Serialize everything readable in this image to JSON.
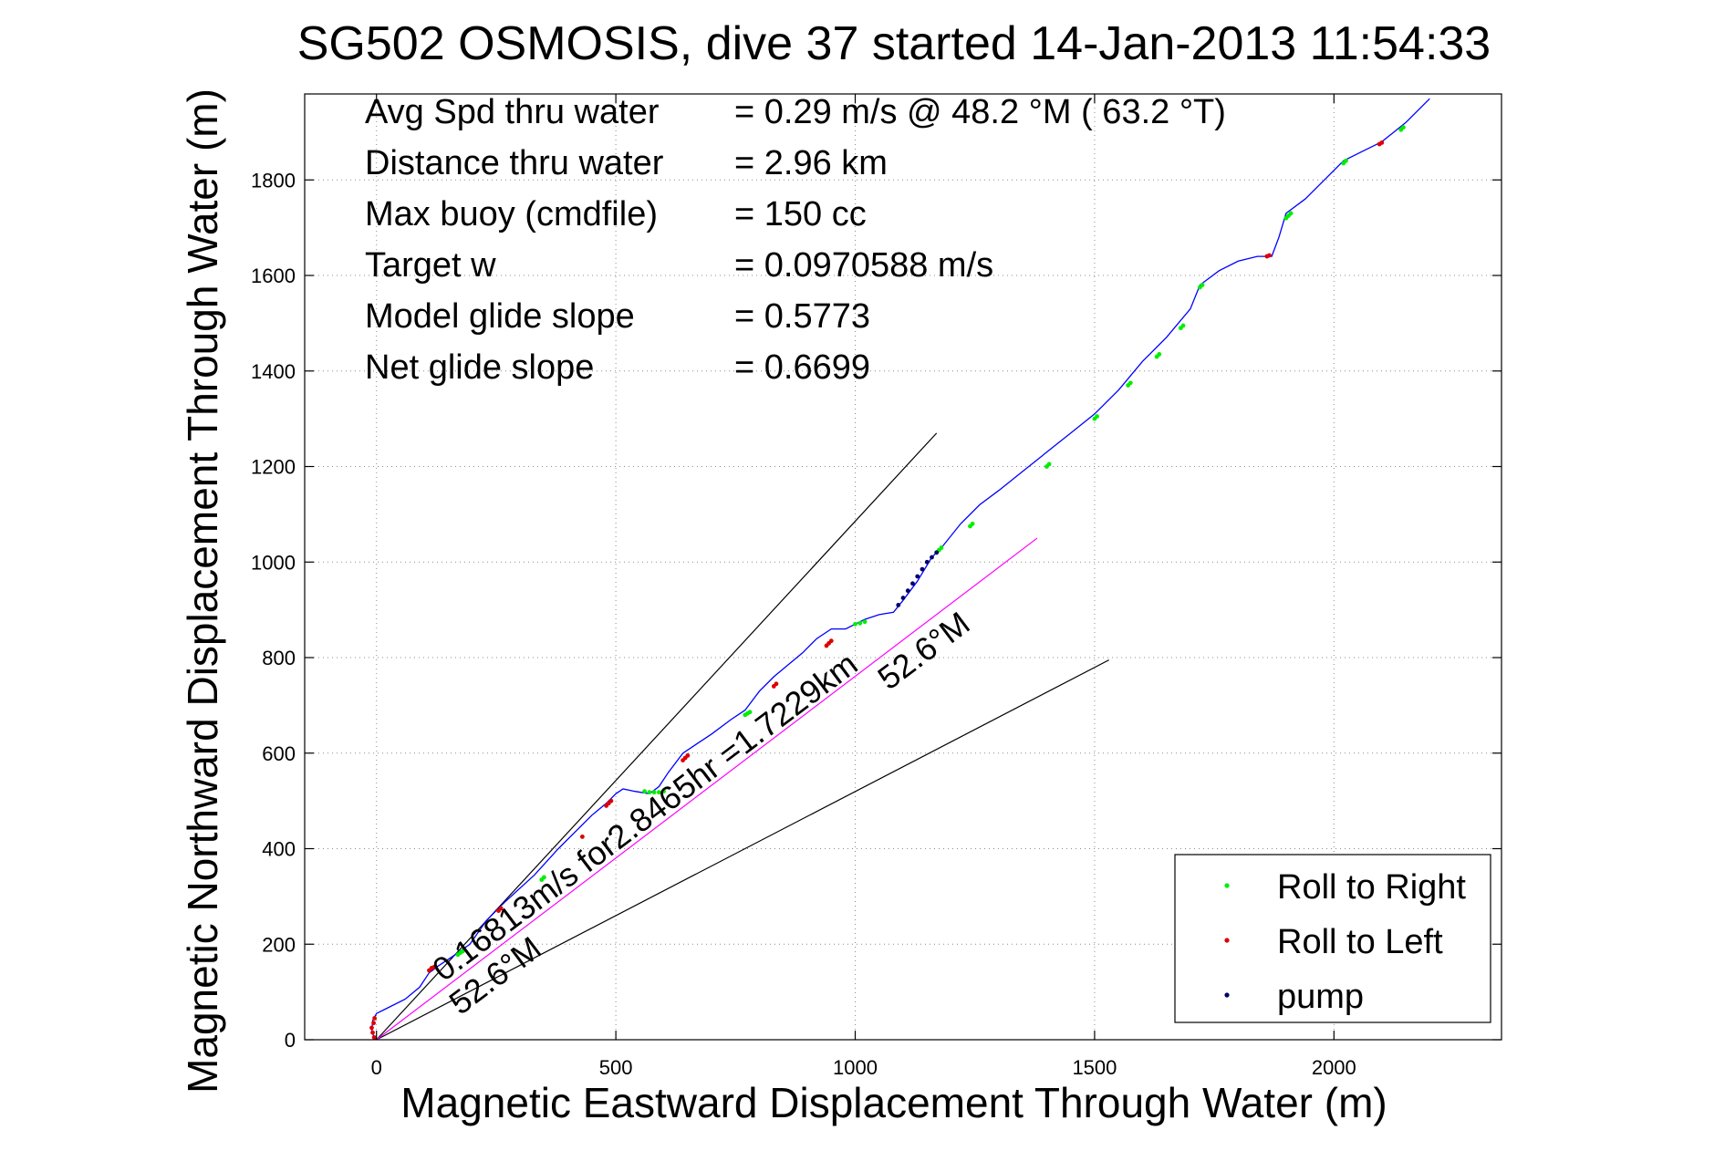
{
  "chart_data": {
    "type": "scatter",
    "title": "SG502 OSMOSIS, dive 37 started 14-Jan-2013 11:54:33",
    "xlabel": "Magnetic Eastward Displacement Through Water (m)",
    "ylabel": "Magnetic Northward Displacement Through Water (m)",
    "xlim": [
      -150,
      2350
    ],
    "ylim": [
      0,
      1980
    ],
    "xticks": [
      0,
      500,
      1000,
      1500,
      2000
    ],
    "yticks": [
      0,
      200,
      400,
      600,
      800,
      1000,
      1200,
      1400,
      1600,
      1800
    ],
    "grid": true,
    "info": [
      {
        "label": "Avg Spd thru water",
        "value": "=  0.29 m/s @  48.2 °M ( 63.2 °T)"
      },
      {
        "label": "Distance thru water",
        "value": "=  2.96 km"
      },
      {
        "label": "Max buoy (cmdfile)",
        "value": "= 150 cc"
      },
      {
        "label": "Target w",
        "value": "= 0.0970588 m/s"
      },
      {
        "label": "Model glide slope",
        "value": "= 0.5773"
      },
      {
        "label": "Net glide slope",
        "value": "= 0.6699"
      }
    ],
    "legend": {
      "placement": "bottom-right",
      "entries": [
        {
          "name": "Roll to Right",
          "color": "#00ee00"
        },
        {
          "name": "Roll to Left",
          "color": "#dd0000"
        },
        {
          "name": "pump",
          "color": "#000066"
        }
      ]
    },
    "track": {
      "color": "#0000ff",
      "x": [
        0,
        -10,
        -8,
        0,
        20,
        60,
        90,
        110,
        130,
        160,
        195,
        230,
        270,
        330,
        380,
        420,
        450,
        480,
        500,
        515,
        540,
        570,
        590,
        610,
        640,
        670,
        700,
        740,
        770,
        800,
        830,
        860,
        890,
        920,
        950,
        980,
        1000,
        1020,
        1050,
        1080,
        1100,
        1130,
        1160,
        1180,
        1220,
        1260,
        1300,
        1350,
        1400,
        1450,
        1500,
        1550,
        1600,
        1650,
        1700,
        1720,
        1760,
        1800,
        1840,
        1870,
        1885,
        1900,
        1940,
        1980,
        2020,
        2060,
        2100,
        2150,
        2200
      ],
      "y": [
        0,
        15,
        40,
        55,
        65,
        85,
        110,
        140,
        155,
        175,
        200,
        250,
        290,
        345,
        400,
        440,
        470,
        495,
        515,
        525,
        520,
        515,
        530,
        560,
        600,
        620,
        640,
        670,
        690,
        730,
        760,
        785,
        810,
        840,
        860,
        860,
        870,
        880,
        890,
        895,
        920,
        960,
        1010,
        1030,
        1080,
        1120,
        1150,
        1190,
        1230,
        1270,
        1310,
        1360,
        1420,
        1470,
        1530,
        1580,
        1610,
        1630,
        1640,
        1640,
        1680,
        1730,
        1760,
        1800,
        1840,
        1860,
        1880,
        1920,
        1970
      ]
    },
    "roll_right": {
      "color": "#00ee00",
      "x": [
        170,
        175,
        180,
        345,
        350,
        560,
        570,
        580,
        590,
        600,
        770,
        775,
        780,
        1000,
        1010,
        1020,
        1170,
        1175,
        1180,
        1240,
        1245,
        1400,
        1405,
        1500,
        1505,
        1570,
        1575,
        1630,
        1635,
        1680,
        1685,
        1720,
        1725,
        1900,
        1905,
        1910,
        2020,
        2025,
        2140,
        2145
      ],
      "y": [
        178,
        182,
        185,
        335,
        340,
        520,
        518,
        518,
        518,
        520,
        680,
        683,
        686,
        870,
        872,
        875,
        1020,
        1025,
        1030,
        1075,
        1080,
        1200,
        1205,
        1300,
        1305,
        1370,
        1375,
        1430,
        1435,
        1490,
        1495,
        1575,
        1580,
        1720,
        1725,
        1730,
        1835,
        1840,
        1905,
        1910
      ]
    },
    "roll_left": {
      "color": "#dd0000",
      "x": [
        -5,
        -8,
        -10,
        -6,
        -4,
        110,
        115,
        120,
        255,
        260,
        430,
        480,
        485,
        490,
        640,
        645,
        650,
        830,
        835,
        940,
        945,
        950,
        1860,
        1865,
        2095,
        2100
      ],
      "y": [
        5,
        15,
        25,
        35,
        45,
        145,
        150,
        152,
        270,
        275,
        425,
        490,
        495,
        500,
        585,
        590,
        595,
        740,
        745,
        825,
        830,
        835,
        1640,
        1642,
        1875,
        1878
      ]
    },
    "pump": {
      "color": "#000066",
      "x": [
        1090,
        1100,
        1110,
        1120,
        1130,
        1140,
        1150,
        1160,
        1170
      ],
      "y": [
        910,
        925,
        940,
        955,
        970,
        985,
        1000,
        1010,
        1020
      ]
    },
    "lines": [
      {
        "name": "",
        "color": "#000000",
        "x": [
          0,
          1170
        ],
        "y": [
          0,
          1270
        ]
      },
      {
        "name": "",
        "color": "#000000",
        "x": [
          0,
          1530
        ],
        "y": [
          0,
          795
        ]
      },
      {
        "name": "",
        "color": "#ff00ff",
        "x": [
          0,
          1380
        ],
        "y": [
          0,
          1050
        ]
      }
    ],
    "annotations": [
      {
        "text": "0.16813m/s for2.8465hr =1.7229km",
        "x": 140,
        "y": 120,
        "angle": -37
      },
      {
        "text": "52.6°M",
        "x": 175,
        "y": 50,
        "angle": -37
      },
      {
        "text": "52.6°M",
        "x": 1070,
        "y": 730,
        "angle": -37
      }
    ]
  }
}
